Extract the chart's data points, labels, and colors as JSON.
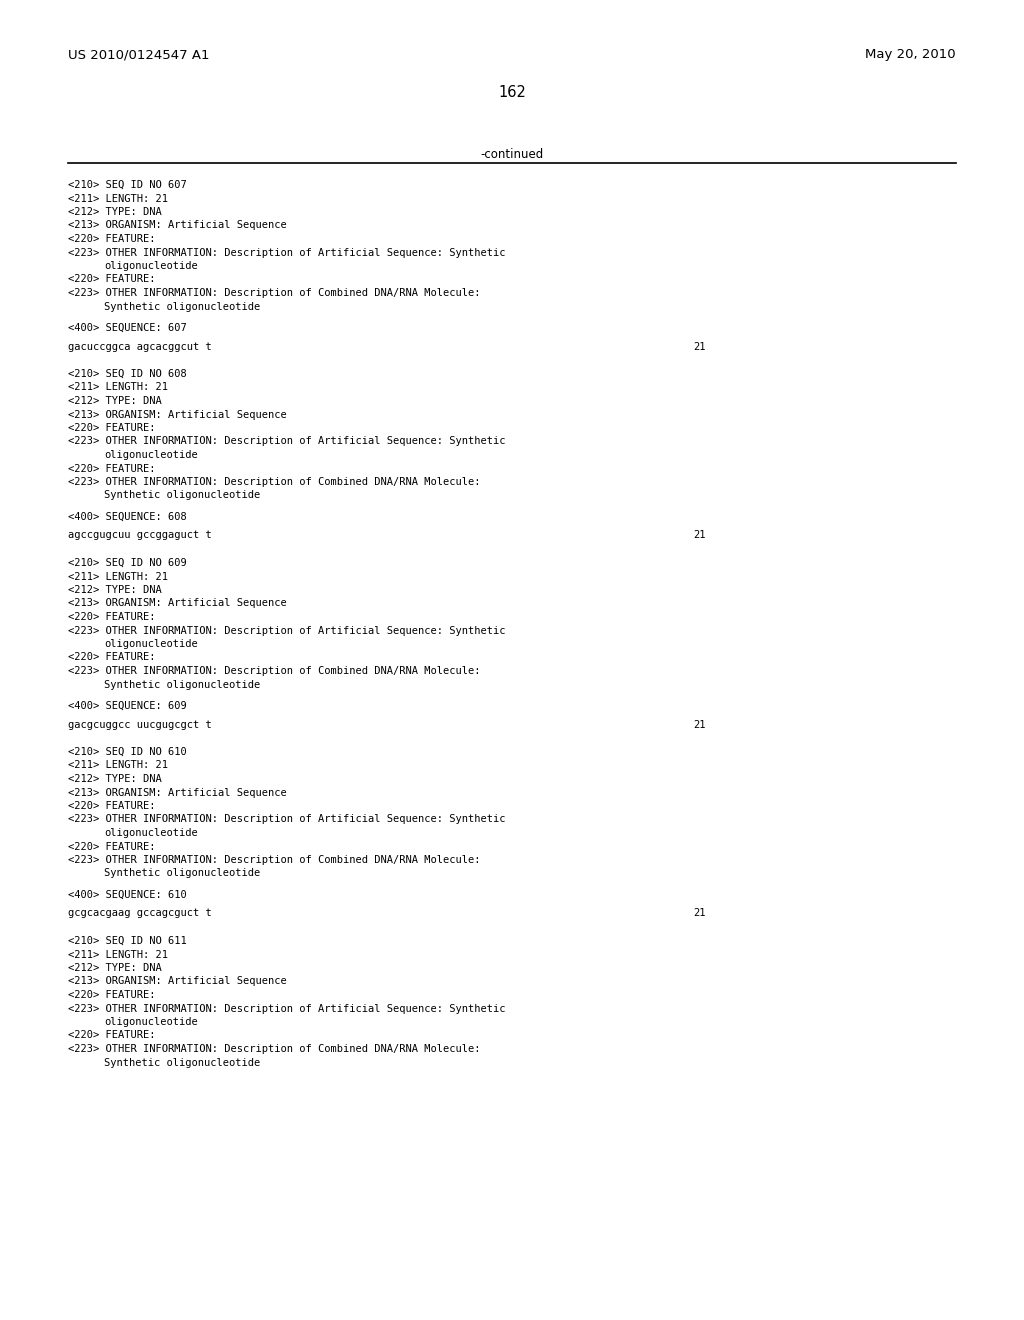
{
  "header_left": "US 2010/0124547 A1",
  "header_right": "May 20, 2010",
  "page_number": "162",
  "continued_text": "-continued",
  "background_color": "#ffffff",
  "text_color": "#000000",
  "font_size_header": 9.5,
  "font_size_page": 10.5,
  "font_size_continued": 8.5,
  "font_size_mono": 7.5,
  "sequences": [
    {
      "seq_id": "607",
      "length": "21",
      "type": "DNA",
      "organism": "Artificial Sequence",
      "sequence_num": "607",
      "sequence": "gacuccggca agcacggcut t",
      "seq_length_num": "21"
    },
    {
      "seq_id": "608",
      "length": "21",
      "type": "DNA",
      "organism": "Artificial Sequence",
      "sequence_num": "608",
      "sequence": "agccgugcuu gccggaguct t",
      "seq_length_num": "21"
    },
    {
      "seq_id": "609",
      "length": "21",
      "type": "DNA",
      "organism": "Artificial Sequence",
      "sequence_num": "609",
      "sequence": "gacgcuggcc uucgugcgct t",
      "seq_length_num": "21"
    },
    {
      "seq_id": "610",
      "length": "21",
      "type": "DNA",
      "organism": "Artificial Sequence",
      "sequence_num": "610",
      "sequence": "gcgcacgaag gccagcguct t",
      "seq_length_num": "21"
    },
    {
      "seq_id": "611",
      "length": "21",
      "type": "DNA",
      "organism": "Artificial Sequence",
      "sequence_num": null,
      "sequence": null,
      "seq_length_num": null
    }
  ]
}
